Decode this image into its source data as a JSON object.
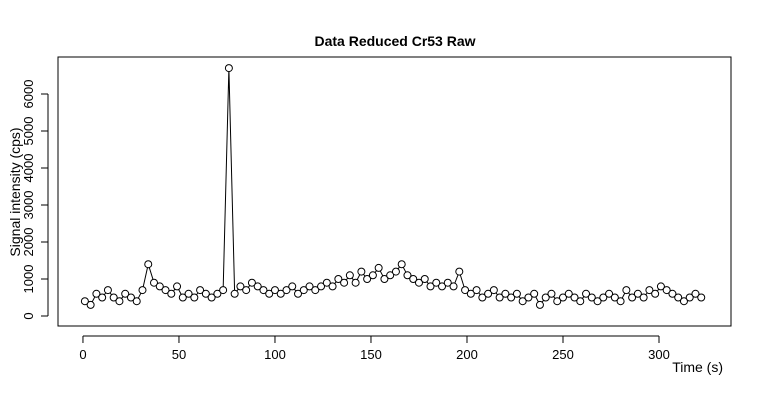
{
  "chart_data": {
    "type": "line",
    "title": "Data Reduced Cr53 Raw",
    "x_label": "Time (s)",
    "y_label": "Signal intensity (cps)",
    "x": [
      1,
      4,
      7,
      10,
      13,
      16,
      19,
      22,
      25,
      28,
      31,
      34,
      37,
      40,
      43,
      46,
      49,
      52,
      55,
      58,
      61,
      64,
      67,
      70,
      73,
      76,
      79,
      82,
      85,
      88,
      91,
      94,
      97,
      100,
      103,
      106,
      109,
      112,
      115,
      118,
      121,
      124,
      127,
      130,
      133,
      136,
      139,
      142,
      145,
      148,
      151,
      154,
      157,
      160,
      163,
      166,
      169,
      172,
      175,
      178,
      181,
      184,
      187,
      190,
      193,
      196,
      199,
      202,
      205,
      208,
      211,
      214,
      217,
      220,
      223,
      226,
      229,
      232,
      235,
      238,
      241,
      244,
      247,
      250,
      253,
      256,
      259,
      262,
      265,
      268,
      271,
      274,
      277,
      280,
      283,
      286,
      289,
      292,
      295,
      298,
      301,
      304,
      307,
      310,
      313,
      316,
      319,
      322
    ],
    "values": [
      400,
      300,
      600,
      500,
      700,
      500,
      400,
      600,
      500,
      400,
      700,
      1400,
      900,
      800,
      700,
      600,
      800,
      500,
      600,
      500,
      700,
      600,
      500,
      600,
      700,
      6700,
      600,
      800,
      700,
      900,
      800,
      700,
      600,
      700,
      600,
      700,
      800,
      600,
      700,
      800,
      700,
      800,
      900,
      800,
      1000,
      900,
      1100,
      900,
      1200,
      1000,
      1100,
      1300,
      1000,
      1100,
      1200,
      1400,
      1100,
      1000,
      900,
      1000,
      800,
      900,
      800,
      900,
      800,
      1200,
      700,
      600,
      700,
      500,
      600,
      700,
      500,
      600,
      500,
      600,
      400,
      500,
      600,
      300,
      500,
      600,
      400,
      500,
      600,
      500,
      400,
      600,
      500,
      400,
      500,
      600,
      500,
      400,
      700,
      500,
      600,
      500,
      700,
      600,
      800,
      700,
      600,
      500,
      400,
      500,
      600,
      500
    ],
    "color": "#000000",
    "xlim": [
      -13,
      337.5
    ],
    "ylim": [
      -270,
      7000
    ],
    "xticks": [
      0,
      50,
      100,
      150,
      200,
      250,
      300
    ],
    "yticks": [
      0,
      1000,
      2000,
      3000,
      4000,
      5000,
      6000
    ]
  }
}
